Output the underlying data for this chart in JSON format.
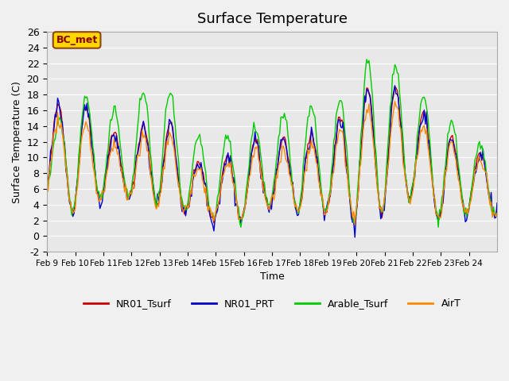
{
  "title": "Surface Temperature",
  "ylabel": "Surface Temperature (C)",
  "xlabel": "Time",
  "ylim": [
    -2,
    26
  ],
  "annotation": "BC_met",
  "legend": [
    "NR01_Tsurf",
    "NR01_PRT",
    "Arable_Tsurf",
    "AirT"
  ],
  "colors": [
    "#cc0000",
    "#0000cc",
    "#00cc00",
    "#ff8800"
  ],
  "xtick_labels": [
    "Feb 9",
    "Feb 10",
    "Feb 11",
    "Feb 12",
    "Feb 13",
    "Feb 14",
    "Feb 15",
    "Feb 16",
    "Feb 17",
    "Feb 18",
    "Feb 19",
    "Feb 20",
    "Feb 21",
    "Feb 22",
    "Feb 23",
    "Feb 24"
  ],
  "n_points": 384
}
